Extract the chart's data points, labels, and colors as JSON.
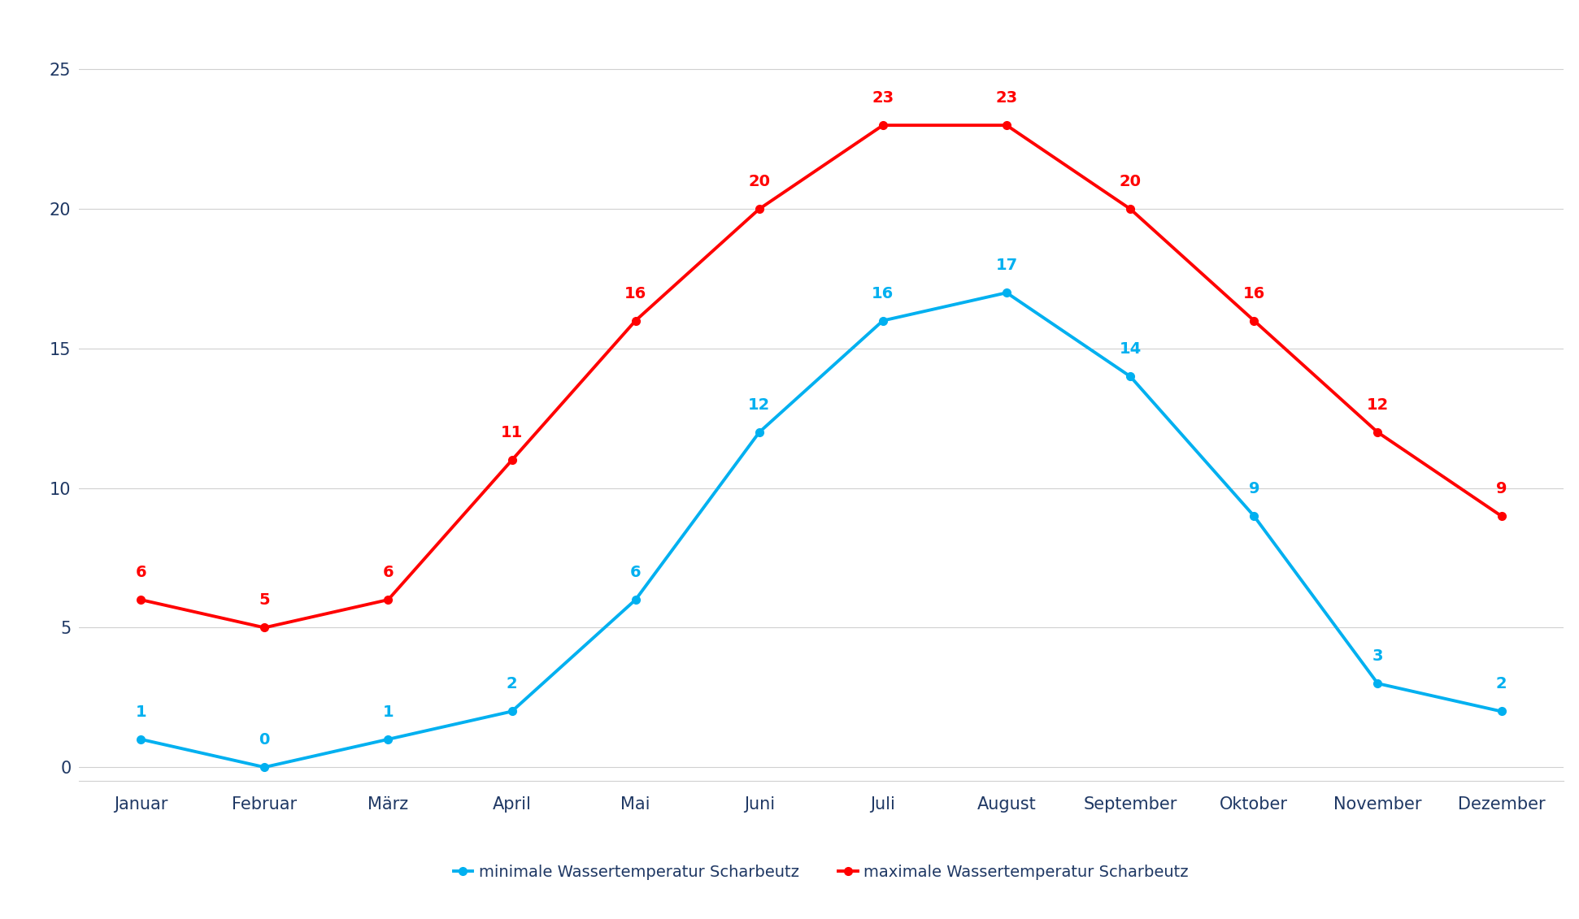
{
  "months": [
    "Januar",
    "Februar",
    "März",
    "April",
    "Mai",
    "Juni",
    "Juli",
    "August",
    "September",
    "Oktober",
    "November",
    "Dezember"
  ],
  "min_temps": [
    1,
    0,
    1,
    2,
    6,
    12,
    16,
    17,
    14,
    9,
    3,
    2
  ],
  "max_temps": [
    6,
    5,
    6,
    11,
    16,
    20,
    23,
    23,
    20,
    16,
    12,
    9
  ],
  "min_color": "#00B0F0",
  "max_color": "#FF0000",
  "label_color_min": "#00B0F0",
  "label_color_max": "#FF0000",
  "axis_label_color": "#1F3864",
  "grid_color": "#D0D0D0",
  "background_color": "#FFFFFF",
  "legend_label_min": "minimale Wassertemperatur Scharbeutz",
  "legend_label_max": "maximale Wassertemperatur Scharbeutz",
  "ylim": [
    -0.5,
    26.5
  ],
  "yticks": [
    0,
    5,
    10,
    15,
    20,
    25
  ],
  "linewidth": 2.8,
  "marker": "o",
  "marker_size": 7,
  "annotation_fontsize": 14,
  "axis_tick_fontsize": 15,
  "legend_fontsize": 14
}
